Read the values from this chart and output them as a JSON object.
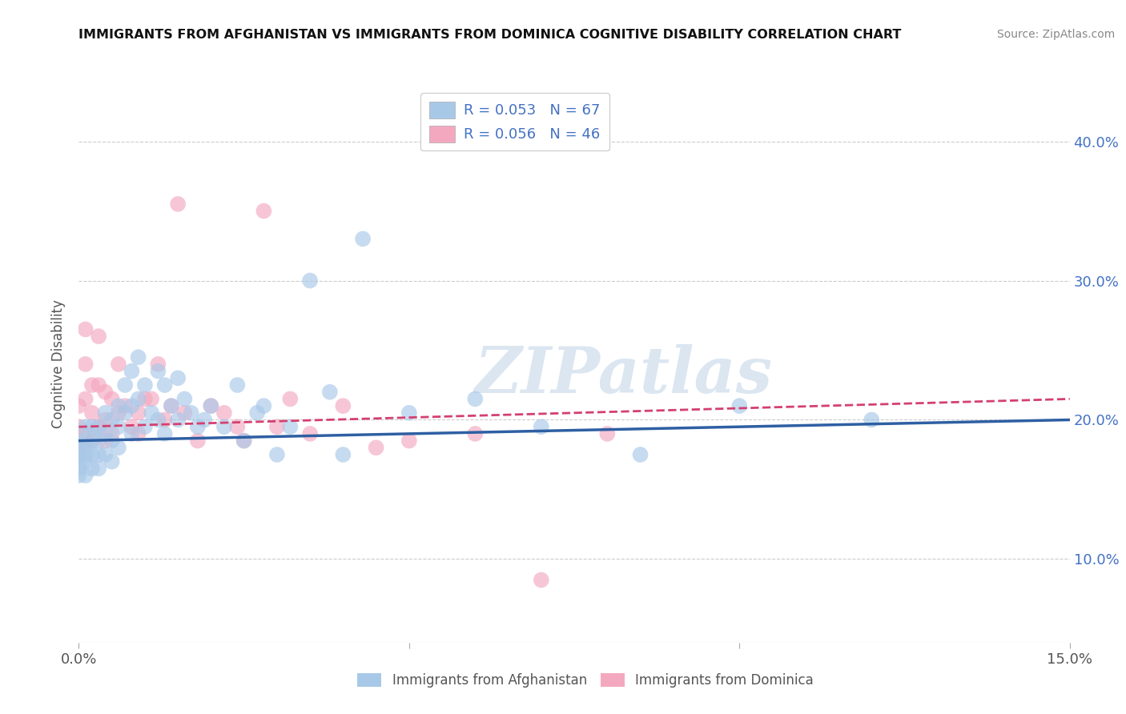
{
  "title": "IMMIGRANTS FROM AFGHANISTAN VS IMMIGRANTS FROM DOMINICA COGNITIVE DISABILITY CORRELATION CHART",
  "source": "Source: ZipAtlas.com",
  "ylabel": "Cognitive Disability",
  "xlim": [
    0.0,
    0.15
  ],
  "ylim": [
    0.04,
    0.44
  ],
  "legend_labels": [
    "Immigrants from Afghanistan",
    "Immigrants from Dominica"
  ],
  "legend_R": [
    "R = 0.053",
    "R = 0.056"
  ],
  "legend_N": [
    "N = 67",
    "N = 46"
  ],
  "afghanistan_color": "#a8c8e8",
  "dominica_color": "#f4a8c0",
  "afghanistan_line_color": "#2e5fa3",
  "dominica_line_color": "#d44070",
  "afghanistan_x": [
    0.0,
    0.0,
    0.0,
    0.0,
    0.0,
    0.001,
    0.001,
    0.001,
    0.001,
    0.001,
    0.001,
    0.002,
    0.002,
    0.002,
    0.002,
    0.003,
    0.003,
    0.003,
    0.003,
    0.004,
    0.004,
    0.004,
    0.005,
    0.005,
    0.005,
    0.006,
    0.006,
    0.006,
    0.007,
    0.007,
    0.008,
    0.008,
    0.008,
    0.009,
    0.009,
    0.01,
    0.01,
    0.011,
    0.012,
    0.012,
    0.013,
    0.013,
    0.014,
    0.015,
    0.015,
    0.016,
    0.017,
    0.018,
    0.019,
    0.02,
    0.022,
    0.024,
    0.025,
    0.027,
    0.028,
    0.03,
    0.032,
    0.035,
    0.038,
    0.04,
    0.043,
    0.05,
    0.06,
    0.07,
    0.085,
    0.1,
    0.12
  ],
  "afghanistan_y": [
    0.185,
    0.175,
    0.17,
    0.165,
    0.16,
    0.195,
    0.185,
    0.18,
    0.175,
    0.17,
    0.16,
    0.195,
    0.185,
    0.175,
    0.165,
    0.195,
    0.185,
    0.175,
    0.165,
    0.205,
    0.19,
    0.175,
    0.2,
    0.185,
    0.17,
    0.21,
    0.195,
    0.18,
    0.225,
    0.205,
    0.235,
    0.21,
    0.19,
    0.245,
    0.215,
    0.225,
    0.195,
    0.205,
    0.235,
    0.2,
    0.225,
    0.19,
    0.21,
    0.23,
    0.2,
    0.215,
    0.205,
    0.195,
    0.2,
    0.21,
    0.195,
    0.225,
    0.185,
    0.205,
    0.21,
    0.175,
    0.195,
    0.3,
    0.22,
    0.175,
    0.33,
    0.205,
    0.215,
    0.195,
    0.175,
    0.21,
    0.2
  ],
  "dominica_x": [
    0.0,
    0.0,
    0.0,
    0.001,
    0.001,
    0.001,
    0.001,
    0.002,
    0.002,
    0.002,
    0.003,
    0.003,
    0.003,
    0.004,
    0.004,
    0.004,
    0.005,
    0.005,
    0.006,
    0.006,
    0.007,
    0.008,
    0.009,
    0.009,
    0.01,
    0.011,
    0.012,
    0.013,
    0.014,
    0.015,
    0.016,
    0.018,
    0.02,
    0.022,
    0.024,
    0.025,
    0.028,
    0.03,
    0.032,
    0.035,
    0.04,
    0.045,
    0.05,
    0.06,
    0.07,
    0.08
  ],
  "dominica_y": [
    0.21,
    0.195,
    0.18,
    0.265,
    0.24,
    0.215,
    0.19,
    0.225,
    0.205,
    0.185,
    0.26,
    0.225,
    0.195,
    0.22,
    0.2,
    0.185,
    0.215,
    0.19,
    0.24,
    0.205,
    0.21,
    0.195,
    0.205,
    0.19,
    0.215,
    0.215,
    0.24,
    0.2,
    0.21,
    0.355,
    0.205,
    0.185,
    0.21,
    0.205,
    0.195,
    0.185,
    0.35,
    0.195,
    0.215,
    0.19,
    0.21,
    0.18,
    0.185,
    0.19,
    0.085,
    0.19
  ],
  "watermark": "ZIPatlas",
  "background_color": "#ffffff",
  "grid_color": "#cccccc"
}
